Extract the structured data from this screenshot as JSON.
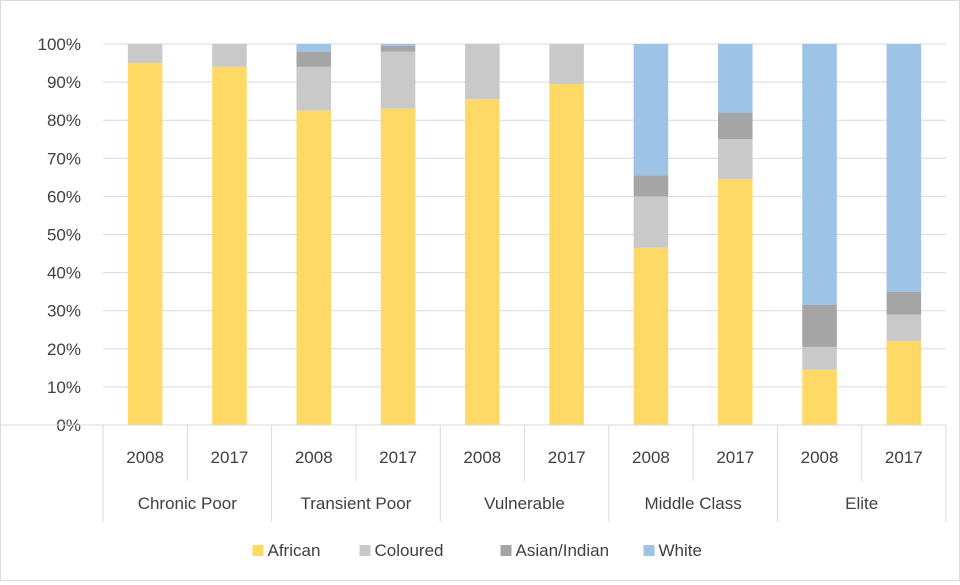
{
  "chart_data": {
    "type": "bar",
    "stacked": true,
    "percent": true,
    "groups": [
      {
        "label": "Chronic Poor",
        "years": [
          "2008",
          "2017"
        ]
      },
      {
        "label": "Transient Poor",
        "years": [
          "2008",
          "2017"
        ]
      },
      {
        "label": "Vulnerable",
        "years": [
          "2008",
          "2017"
        ]
      },
      {
        "label": "Middle Class",
        "years": [
          "2008",
          "2017"
        ]
      },
      {
        "label": "Elite",
        "years": [
          "2008",
          "2017"
        ]
      }
    ],
    "series": [
      {
        "name": "African",
        "color": "#FFD966",
        "values": [
          95,
          94,
          82.5,
          83,
          85.5,
          89.5,
          46.5,
          64.5,
          14.5,
          22
        ]
      },
      {
        "name": "Coloured",
        "color": "#C9C9C9",
        "values": [
          5,
          6,
          11.5,
          15,
          14.5,
          10.5,
          13.5,
          10.5,
          6,
          7
        ]
      },
      {
        "name": "Asian/Indian",
        "color": "#A5A5A5",
        "values": [
          0,
          0,
          4,
          1.5,
          0,
          0,
          5.5,
          7,
          11,
          6
        ]
      },
      {
        "name": "White",
        "color": "#9DC3E6",
        "values": [
          0,
          0,
          2,
          0.5,
          0,
          0,
          34.5,
          18,
          68.5,
          65
        ]
      }
    ],
    "y_ticks": [
      "0%",
      "10%",
      "20%",
      "30%",
      "40%",
      "50%",
      "60%",
      "70%",
      "80%",
      "90%",
      "100%"
    ],
    "ylim": [
      0,
      100
    ],
    "grid": true,
    "legend_position": "bottom"
  }
}
